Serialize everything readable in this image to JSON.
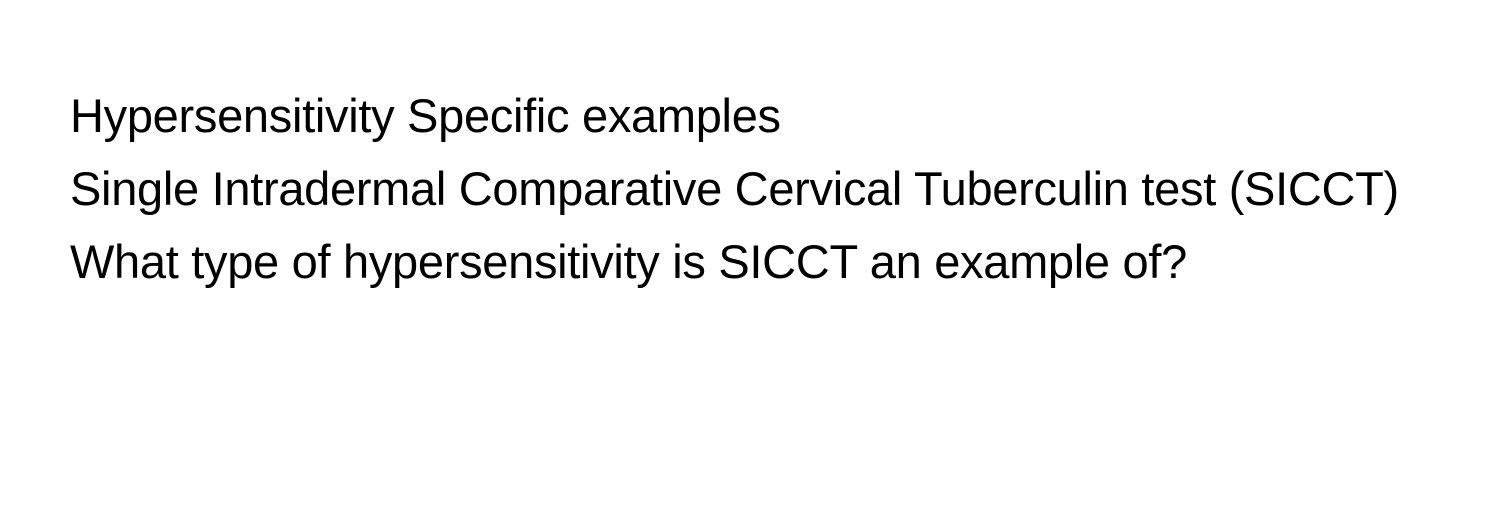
{
  "document": {
    "line1": "Hypersensitivity Specific examples",
    "line2": "Single Intradermal Comparative Cervical Tuberculin test (SICCT) What type of hypersensitivity is SICCT an example of?",
    "text_color": "#000000",
    "background_color": "#ffffff",
    "font_size": 47,
    "line_height": 1.55,
    "font_weight": 400
  }
}
